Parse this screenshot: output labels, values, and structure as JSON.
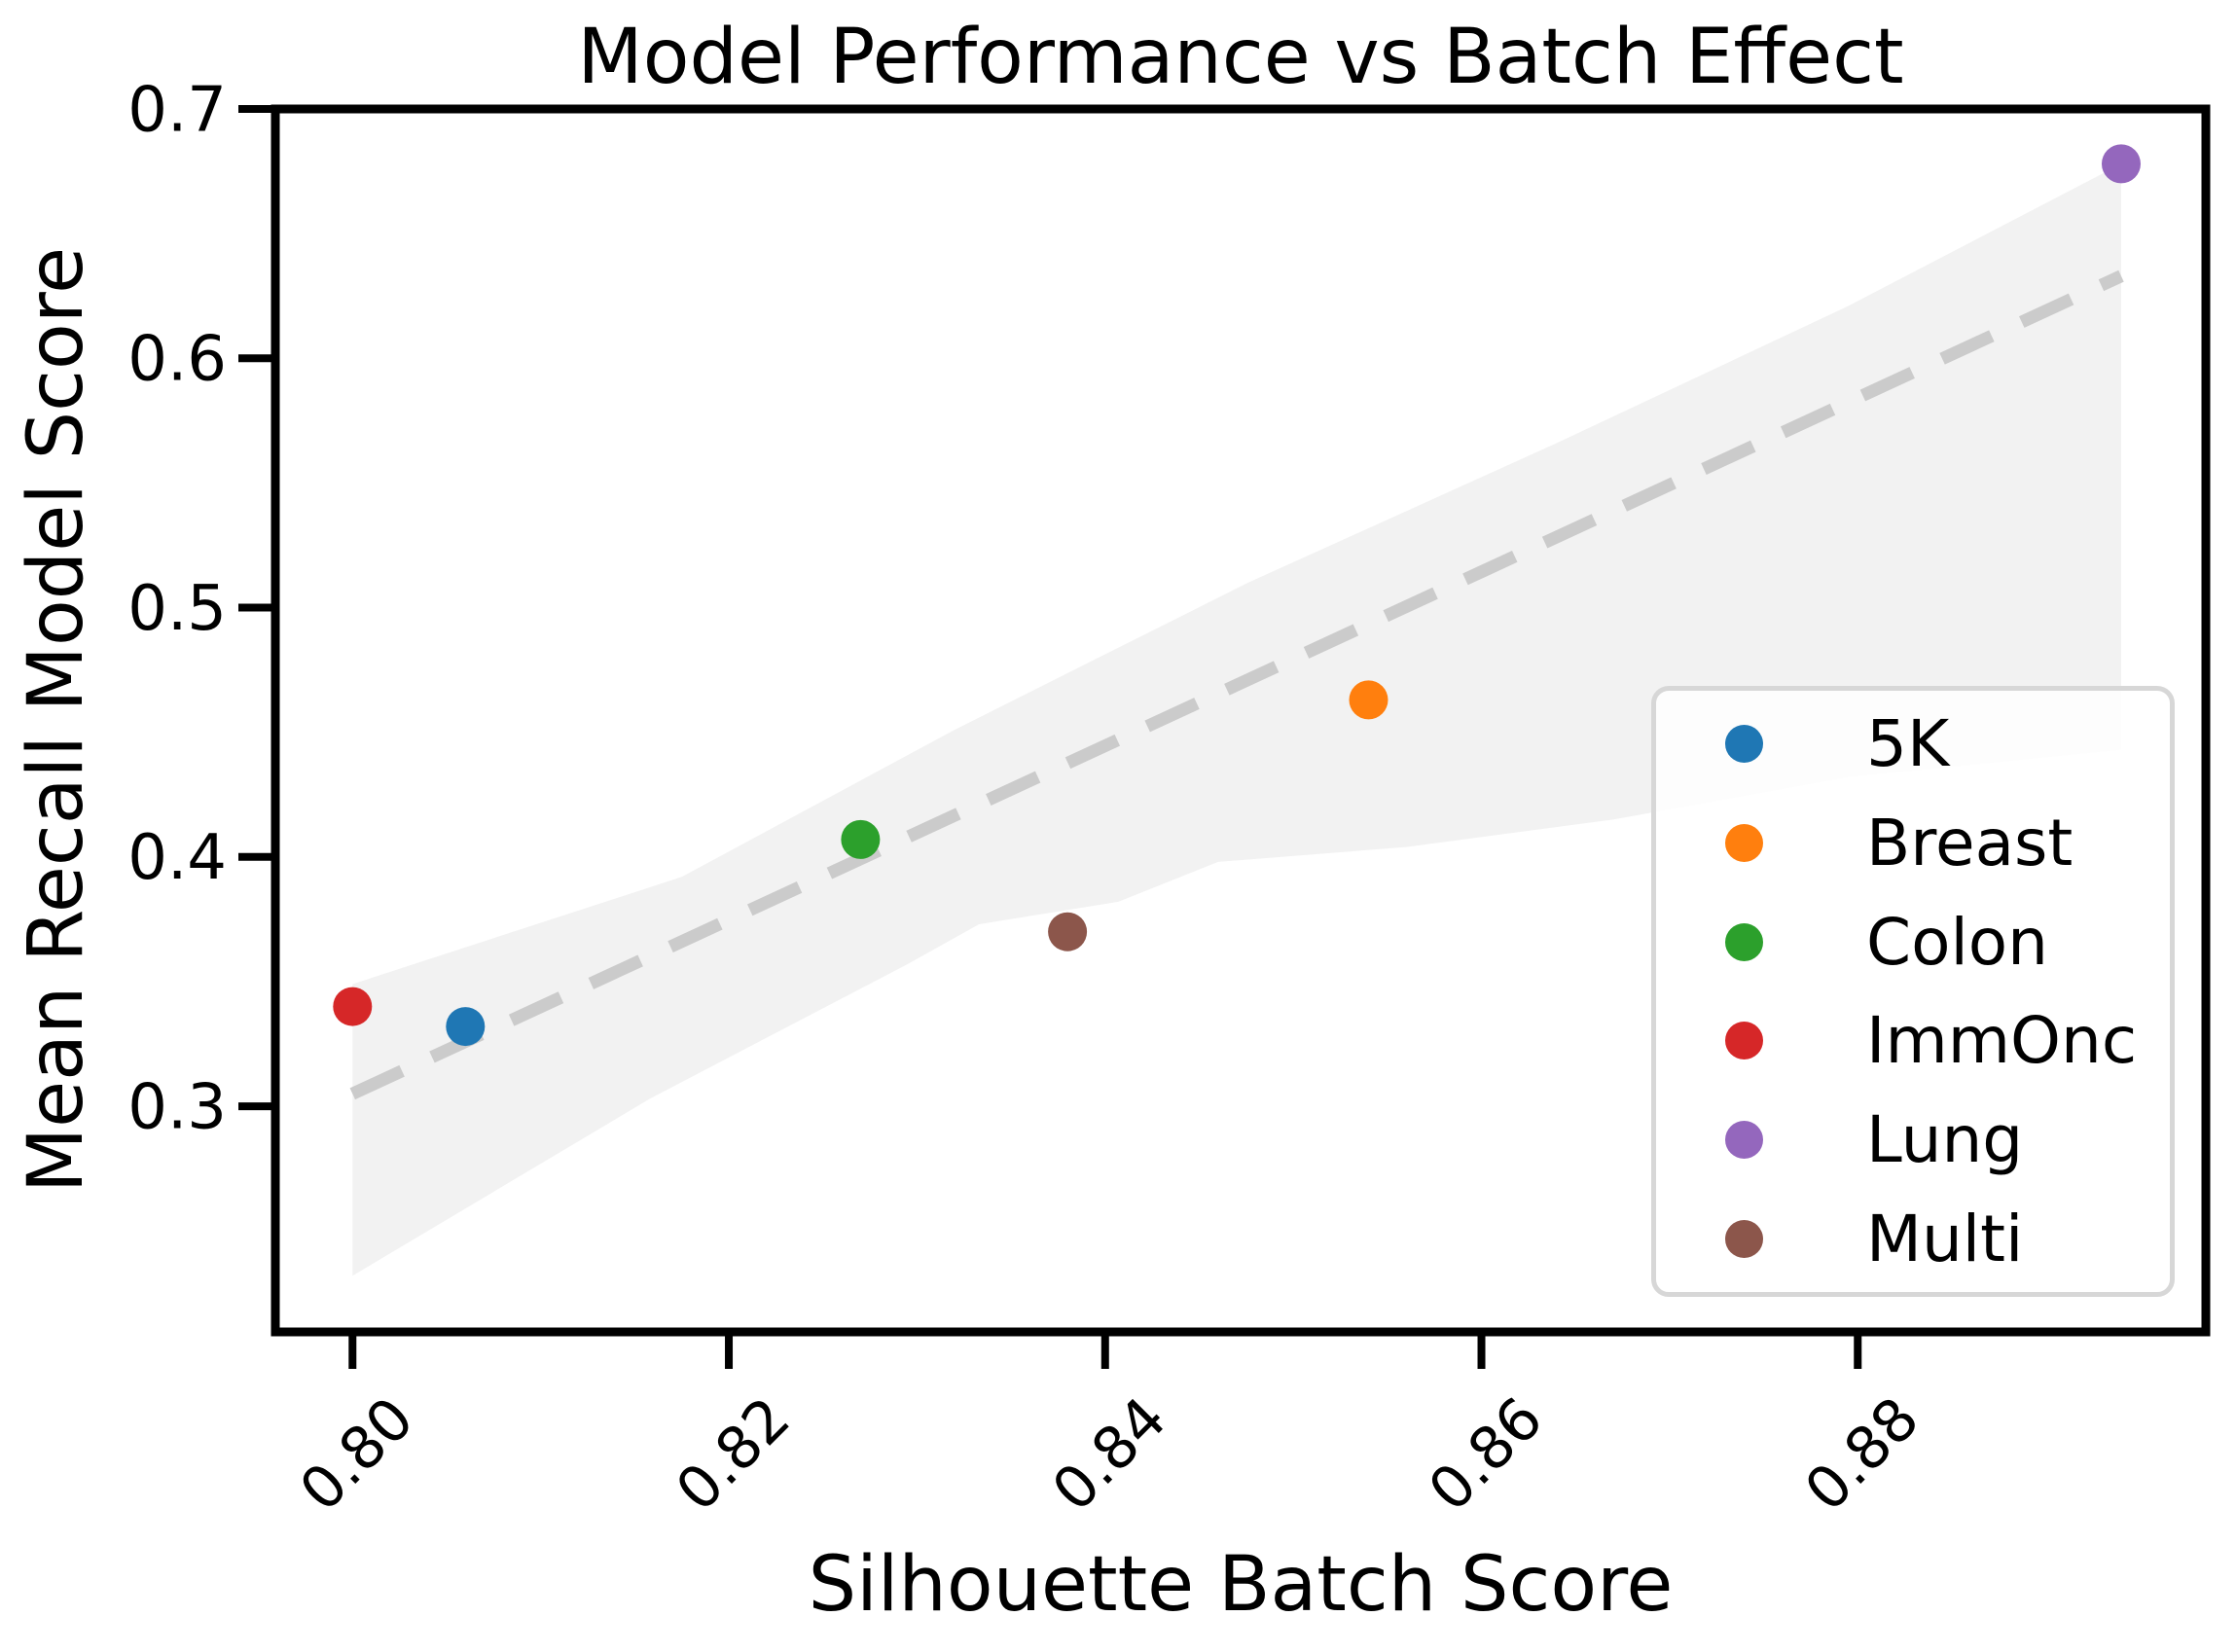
{
  "chart_data": {
    "type": "scatter",
    "title": "Model Performance vs Batch Effect",
    "xlabel": "Silhouette Batch Score",
    "ylabel": "Mean Recall Model Score",
    "xlim": [
      0.7959,
      0.8985
    ],
    "ylim": [
      0.2095,
      0.7
    ],
    "grid": false,
    "legend_position": "lower right",
    "xticks": [
      {
        "value": 0.8,
        "label": "0.80"
      },
      {
        "value": 0.82,
        "label": "0.82"
      },
      {
        "value": 0.84,
        "label": "0.84"
      },
      {
        "value": 0.86,
        "label": "0.86"
      },
      {
        "value": 0.88,
        "label": "0.88"
      }
    ],
    "yticks": [
      {
        "value": 0.3,
        "label": "0.3"
      },
      {
        "value": 0.4,
        "label": "0.4"
      },
      {
        "value": 0.5,
        "label": "0.5"
      },
      {
        "value": 0.6,
        "label": "0.6"
      },
      {
        "value": 0.7,
        "label": "0.7"
      }
    ],
    "series": [
      {
        "name": "5K",
        "color": "#1f77b4",
        "x": 0.806,
        "y": 0.332
      },
      {
        "name": "Breast",
        "color": "#ff7f0e",
        "x": 0.854,
        "y": 0.463
      },
      {
        "name": "Colon",
        "color": "#2ca02c",
        "x": 0.827,
        "y": 0.407
      },
      {
        "name": "ImmOnc",
        "color": "#d62728",
        "x": 0.8,
        "y": 0.34
      },
      {
        "name": "Lung",
        "color": "#9467bd",
        "x": 0.894,
        "y": 0.678
      },
      {
        "name": "Multi",
        "color": "#8c564b",
        "x": 0.838,
        "y": 0.37
      }
    ],
    "trendline": {
      "style": "dashed",
      "color": "#cbcbcb",
      "x": [
        0.8,
        0.894
      ],
      "y": [
        0.305,
        0.633
      ]
    },
    "confidence_band": {
      "color": "#f2f2f2",
      "polygon": [
        [
          0.8,
          0.349
        ],
        [
          0.8175,
          0.392
        ],
        [
          0.832,
          0.451
        ],
        [
          0.8476,
          0.51
        ],
        [
          0.864,
          0.566
        ],
        [
          0.8795,
          0.621
        ],
        [
          0.894,
          0.678
        ],
        [
          0.894,
          0.443
        ],
        [
          0.8795,
          0.432
        ],
        [
          0.867,
          0.415
        ],
        [
          0.856,
          0.404
        ],
        [
          0.846,
          0.398
        ],
        [
          0.8407,
          0.382
        ],
        [
          0.8333,
          0.373
        ],
        [
          0.8295,
          0.357
        ],
        [
          0.8158,
          0.303
        ],
        [
          0.8,
          0.232
        ]
      ]
    }
  }
}
